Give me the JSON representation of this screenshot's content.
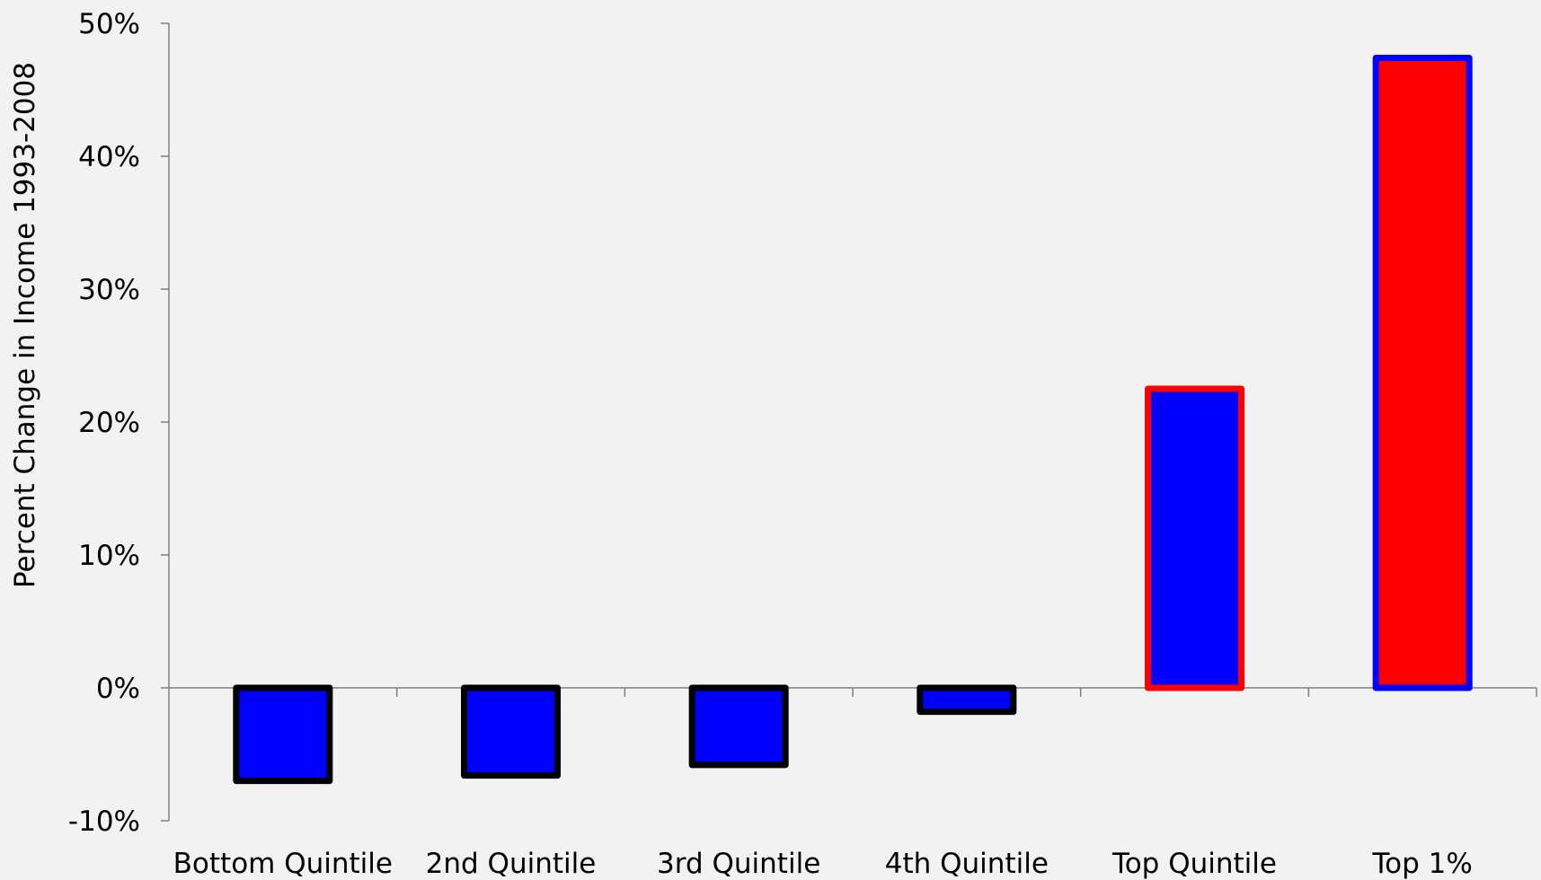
{
  "chart_data": {
    "type": "bar",
    "title": "",
    "xlabel": "",
    "ylabel": "Percent Change in Income 1993-2008",
    "ylim": [
      -10,
      50
    ],
    "yticks": [
      -10,
      0,
      10,
      20,
      30,
      40,
      50
    ],
    "ytick_labels": [
      "-10%",
      "0%",
      "10%",
      "20%",
      "30%",
      "40%",
      "50%"
    ],
    "categories": [
      "Bottom Quintile",
      "2nd Quintile",
      "3rd Quintile",
      "4th Quintile",
      "Top Quintile",
      "Top 1%"
    ],
    "values": [
      -7.0,
      -6.6,
      -5.8,
      -1.8,
      22.5,
      47.4
    ],
    "bar_fill_colors": [
      "#0000ff",
      "#0000ff",
      "#0000ff",
      "#0000ff",
      "#0000ff",
      "#ff0000"
    ],
    "bar_edge_colors": [
      "#000000",
      "#000000",
      "#000000",
      "#000000",
      "#ff0000",
      "#0000ff"
    ],
    "grid": false,
    "legend": "none"
  }
}
